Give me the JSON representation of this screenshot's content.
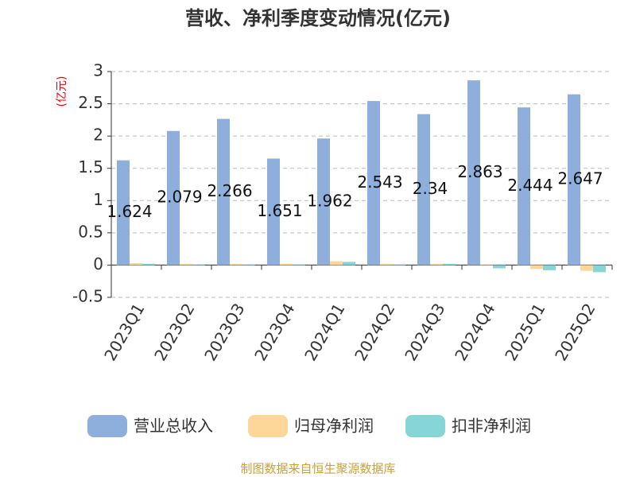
{
  "chart_data": {
    "type": "bar",
    "title": "营收、净利季度变动情况(亿元)",
    "y_unit": "(亿元)",
    "source": "制图数据来自恒生聚源数据库",
    "categories": [
      "2023Q1",
      "2023Q2",
      "2023Q3",
      "2023Q4",
      "2024Q1",
      "2024Q2",
      "2024Q3",
      "2024Q4",
      "2025Q1",
      "2025Q2"
    ],
    "series": [
      {
        "name": "营业总收入",
        "color": "#8eaedc",
        "values": [
          1.624,
          2.079,
          2.266,
          1.651,
          1.962,
          2.543,
          2.34,
          2.863,
          2.444,
          2.647
        ],
        "labels": true
      },
      {
        "name": "归母净利润",
        "color": "#fdd79a",
        "values": [
          0.03,
          0.02,
          0.02,
          0.02,
          0.06,
          0.02,
          0.02,
          0.01,
          -0.06,
          -0.09
        ]
      },
      {
        "name": "扣非净利润",
        "color": "#86d6d8",
        "values": [
          0.02,
          0.01,
          0.01,
          0.01,
          0.05,
          0.01,
          0.02,
          -0.05,
          -0.08,
          -0.11
        ]
      }
    ],
    "ylim": [
      -0.5,
      3
    ],
    "yticks": [
      -0.5,
      0,
      0.5,
      1,
      1.5,
      2,
      2.5,
      3
    ],
    "grid": true
  }
}
